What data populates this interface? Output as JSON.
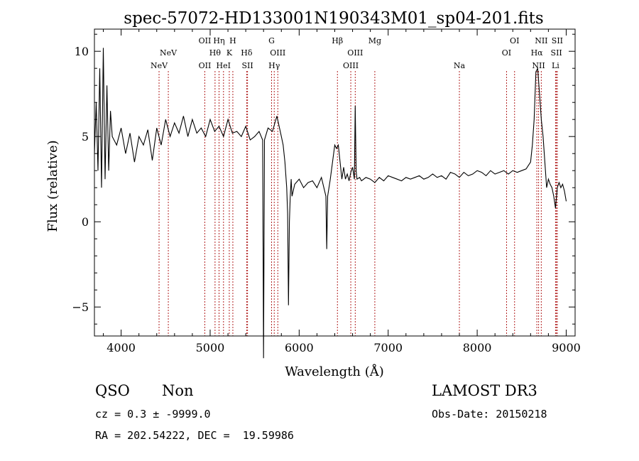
{
  "chart_data": {
    "type": "line",
    "title": "spec-57072-HD133001N190343M01_sp04-201.fits",
    "xlabel": "Wavelength (Å)",
    "ylabel": "Flux (relative)",
    "xlim": [
      3700,
      9100
    ],
    "ylim": [
      -6.7,
      11.3
    ],
    "x_ticks": [
      4000,
      5000,
      6000,
      7000,
      8000,
      9000
    ],
    "x_tick_labels": [
      "4000",
      "5000",
      "6000",
      "7000",
      "8000",
      "9000"
    ],
    "y_ticks": [
      -5,
      0,
      5,
      10
    ],
    "y_tick_labels": [
      "−5",
      "0",
      "5",
      "10"
    ],
    "grid": false,
    "line_color": "#000000",
    "marker_color": "#b22222",
    "series": [
      {
        "x": [
          3700,
          3720,
          3740,
          3760,
          3780,
          3800,
          3820,
          3840,
          3860,
          3880,
          3900,
          3950,
          4000,
          4050,
          4100,
          4150,
          4200,
          4250,
          4300,
          4350,
          4400,
          4450,
          4500,
          4550,
          4600,
          4650,
          4700,
          4750,
          4800,
          4850,
          4900,
          4950,
          5000,
          5050,
          5100,
          5150,
          5200,
          5250,
          5300,
          5350,
          5400,
          5450,
          5500,
          5550,
          5590,
          5600,
          5610,
          5650,
          5700,
          5750,
          5800,
          5820,
          5840,
          5860,
          5870,
          5880,
          5890,
          5900,
          5910,
          5920,
          5950,
          6000,
          6050,
          6100,
          6150,
          6200,
          6250,
          6300,
          6310,
          6320,
          6350,
          6400,
          6420,
          6440,
          6460,
          6480,
          6500,
          6520,
          6540,
          6560,
          6580,
          6600,
          6620,
          6630,
          6640,
          6650,
          6680,
          6700,
          6750,
          6800,
          6850,
          6900,
          6950,
          7000,
          7050,
          7100,
          7150,
          7200,
          7250,
          7300,
          7350,
          7400,
          7450,
          7500,
          7550,
          7600,
          7650,
          7700,
          7750,
          7800,
          7850,
          7900,
          7950,
          8000,
          8050,
          8100,
          8150,
          8200,
          8250,
          8300,
          8350,
          8400,
          8450,
          8500,
          8550,
          8600,
          8620,
          8640,
          8660,
          8680,
          8700,
          8720,
          8740,
          8760,
          8780,
          8800,
          8820,
          8840,
          8860,
          8880,
          8900,
          8920,
          8940,
          8960,
          8980,
          9000
        ],
        "y": [
          4.0,
          7.0,
          3.0,
          9.0,
          2.0,
          10.2,
          2.5,
          8.0,
          3.0,
          6.5,
          5.0,
          4.5,
          5.5,
          4.0,
          5.2,
          3.5,
          5.0,
          4.5,
          5.4,
          3.6,
          5.5,
          4.5,
          6.0,
          5.0,
          5.8,
          5.2,
          6.2,
          5.0,
          6.0,
          5.2,
          5.5,
          5.0,
          6.0,
          5.3,
          5.6,
          5.0,
          6.0,
          5.2,
          5.3,
          5.0,
          5.6,
          4.8,
          5.0,
          5.3,
          4.8,
          -8.0,
          4.8,
          5.5,
          5.3,
          6.2,
          5.0,
          4.5,
          3.5,
          2.0,
          0.5,
          -4.9,
          0.0,
          1.5,
          2.5,
          1.5,
          2.2,
          2.5,
          2.0,
          2.3,
          2.4,
          2.0,
          2.6,
          1.5,
          -1.6,
          1.5,
          2.5,
          4.5,
          4.3,
          4.5,
          3.5,
          2.5,
          3.2,
          2.5,
          2.8,
          2.4,
          2.9,
          3.2,
          2.5,
          6.8,
          3.0,
          2.5,
          2.6,
          2.4,
          2.6,
          2.5,
          2.3,
          2.6,
          2.4,
          2.7,
          2.6,
          2.5,
          2.4,
          2.6,
          2.5,
          2.6,
          2.7,
          2.5,
          2.6,
          2.8,
          2.6,
          2.7,
          2.5,
          2.9,
          2.8,
          2.6,
          2.9,
          2.7,
          2.8,
          3.0,
          2.9,
          2.7,
          3.0,
          2.8,
          2.9,
          3.0,
          2.8,
          3.0,
          2.9,
          3.0,
          3.1,
          3.5,
          4.5,
          6.0,
          8.8,
          9.0,
          7.5,
          6.0,
          5.0,
          3.5,
          2.0,
          2.5,
          2.2,
          2.0,
          1.5,
          0.8,
          2.0,
          2.3,
          2.0,
          2.2,
          1.8,
          1.2
        ]
      }
    ],
    "line_markers": [
      {
        "x": 4426,
        "row": 2,
        "label": "NeV"
      },
      {
        "x": 4530,
        "row": 1,
        "label": "NeV"
      },
      {
        "x": 4940,
        "row": 0,
        "label": "OII"
      },
      {
        "x": 4940,
        "row": 2,
        "label": "OII"
      },
      {
        "x": 5055,
        "row": 1,
        "label": "Hθ"
      },
      {
        "x": 5100,
        "row": 0,
        "label": "Hη"
      },
      {
        "x": 5150,
        "row": 2,
        "label": "HeI"
      },
      {
        "x": 5215,
        "row": 1,
        "label": "K"
      },
      {
        "x": 5255,
        "row": 0,
        "label": "H"
      },
      {
        "x": 5410,
        "row": 1,
        "label": "Hδ"
      },
      {
        "x": 5420,
        "row": 2,
        "label": "SII"
      },
      {
        "x": 5690,
        "row": 0,
        "label": "G"
      },
      {
        "x": 5720,
        "row": 2,
        "label": "Hγ"
      },
      {
        "x": 5760,
        "row": 1,
        "label": "OIII"
      },
      {
        "x": 6430,
        "row": 0,
        "label": "Hβ"
      },
      {
        "x": 6580,
        "row": 2,
        "label": "OIII"
      },
      {
        "x": 6630,
        "row": 1,
        "label": "OIII"
      },
      {
        "x": 6850,
        "row": 0,
        "label": "Mg"
      },
      {
        "x": 7800,
        "row": 2,
        "label": "Na"
      },
      {
        "x": 8330,
        "row": 1,
        "label": "OI"
      },
      {
        "x": 8420,
        "row": 0,
        "label": "OI"
      },
      {
        "x": 8670,
        "row": 1,
        "label": "Hα"
      },
      {
        "x": 8690,
        "row": 2,
        "label": "NII"
      },
      {
        "x": 8720,
        "row": 0,
        "label": "NII"
      },
      {
        "x": 8890,
        "row": 1,
        "label": "SII"
      },
      {
        "x": 8900,
        "row": 0,
        "label": "SII"
      },
      {
        "x": 8880,
        "row": 2,
        "label": "Li"
      }
    ]
  },
  "info": {
    "class_label": "QSO",
    "subclass_label": "Non",
    "redshift_line": "cz = 0.3 ± -9999.0",
    "coords_line": "RA = 202.54222, DEC =  19.59986",
    "survey_label": "LAMOST DR3",
    "obs_date_line": "Obs-Date: 20150218"
  }
}
